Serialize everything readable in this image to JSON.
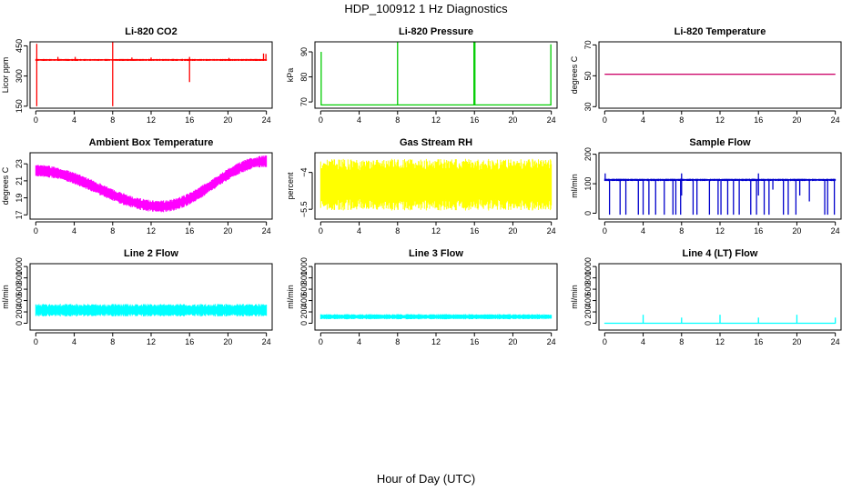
{
  "title": "HDP_100912  1 Hz Diagnostics",
  "xlabel": "Hour of Day (UTC)",
  "chart_data": [
    {
      "type": "line",
      "title": "Li-820 CO2",
      "ylabel": "Licor ppm",
      "color": "#ff0000",
      "x_ticks": [
        0,
        4,
        8,
        12,
        16,
        20,
        24
      ],
      "xlim": [
        -0.6,
        24.6
      ],
      "ylim": [
        140,
        470
      ],
      "y_ticks": [
        150,
        300,
        450
      ],
      "base": {
        "start": 380,
        "end": 380,
        "amp": 5,
        "wave": 0
      },
      "spikes": [
        {
          "x": 0.1,
          "lo": 150,
          "hi": 460
        },
        {
          "x": 2.3,
          "lo": 375,
          "hi": 395
        },
        {
          "x": 4.1,
          "lo": 375,
          "hi": 395
        },
        {
          "x": 8.0,
          "lo": 150,
          "hi": 480
        },
        {
          "x": 10.0,
          "lo": 375,
          "hi": 392
        },
        {
          "x": 12.0,
          "lo": 375,
          "hi": 392
        },
        {
          "x": 16.0,
          "lo": 270,
          "hi": 395
        },
        {
          "x": 20.1,
          "lo": 375,
          "hi": 390
        },
        {
          "x": 23.7,
          "lo": 375,
          "hi": 412
        },
        {
          "x": 23.95,
          "lo": 375,
          "hi": 410
        }
      ]
    },
    {
      "type": "line",
      "title": "Li-820 Pressure",
      "ylabel": "kPa",
      "color": "#00cc00",
      "x_ticks": [
        0,
        4,
        8,
        12,
        16,
        20,
        24
      ],
      "xlim": [
        -0.6,
        24.6
      ],
      "ylim": [
        67.5,
        94
      ],
      "y_ticks": [
        70,
        80,
        90
      ],
      "base": {
        "start": 68.8,
        "end": 68.8,
        "amp": 0.3,
        "wave": 0
      },
      "spikes": [
        {
          "x": 0.05,
          "lo": 68.8,
          "hi": 90
        },
        {
          "x": 8.0,
          "lo": 68.8,
          "hi": 94
        },
        {
          "x": 15.95,
          "lo": 68.8,
          "hi": 94
        },
        {
          "x": 16.05,
          "lo": 68.8,
          "hi": 94
        },
        {
          "x": 23.95,
          "lo": 68.8,
          "hi": 93
        }
      ]
    },
    {
      "type": "line",
      "title": "Li-820 Temperature",
      "ylabel": "degrees C",
      "color": "#cc0066",
      "x_ticks": [
        0,
        4,
        8,
        12,
        16,
        20,
        24
      ],
      "xlim": [
        -0.6,
        24.6
      ],
      "ylim": [
        29,
        72
      ],
      "y_ticks": [
        30,
        50,
        70
      ],
      "base": {
        "start": 51,
        "end": 51,
        "amp": 0.05,
        "wave": 0
      },
      "spikes": []
    },
    {
      "type": "line",
      "title": "Ambient Box Temperature",
      "ylabel": "degrees C",
      "color": "#ff00ff",
      "x_ticks": [
        0,
        4,
        8,
        12,
        16,
        20,
        24
      ],
      "xlim": [
        -0.6,
        24.6
      ],
      "ylim": [
        16.5,
        24.3
      ],
      "y_ticks": [
        17,
        19,
        21,
        23
      ],
      "base": {
        "start": 22.2,
        "end": 23.3,
        "amp": 0.7,
        "wave": 1,
        "min_x": 13,
        "min_y": 18.0
      },
      "spikes": []
    },
    {
      "type": "line",
      "title": "Gas Stream RH",
      "ylabel": "percent",
      "color": "#ffff00",
      "x_ticks": [
        0,
        4,
        8,
        12,
        16,
        20,
        24
      ],
      "xlim": [
        -0.6,
        24.6
      ],
      "ylim": [
        -5.9,
        -3.2
      ],
      "y_ticks": [
        -5.5,
        -4.0
      ],
      "base": {
        "start": -4.5,
        "end": -4.5,
        "amp": 1.05,
        "wave": 0
      },
      "spikes": []
    },
    {
      "type": "line",
      "title": "Sample Flow",
      "ylabel": "ml/min",
      "color": "#0000cc",
      "x_ticks": [
        0,
        4,
        8,
        12,
        16,
        20,
        24
      ],
      "xlim": [
        -0.6,
        24.6
      ],
      "ylim": [
        -20,
        205
      ],
      "y_ticks": [
        0,
        100,
        200
      ],
      "base": {
        "start": 113,
        "end": 113,
        "amp": 4,
        "wave": 0
      },
      "spikes": [
        {
          "x": 0.05,
          "lo": 113,
          "hi": 135
        },
        {
          "x": 0.5,
          "lo": -5,
          "hi": 113
        },
        {
          "x": 1.6,
          "lo": -5,
          "hi": 113
        },
        {
          "x": 2.2,
          "lo": -5,
          "hi": 113
        },
        {
          "x": 3.5,
          "lo": -5,
          "hi": 113
        },
        {
          "x": 4.0,
          "lo": -5,
          "hi": 113
        },
        {
          "x": 4.6,
          "lo": -5,
          "hi": 113
        },
        {
          "x": 5.3,
          "lo": -5,
          "hi": 113
        },
        {
          "x": 6.2,
          "lo": -5,
          "hi": 113
        },
        {
          "x": 7.1,
          "lo": -5,
          "hi": 113
        },
        {
          "x": 7.4,
          "lo": -5,
          "hi": 113
        },
        {
          "x": 7.9,
          "lo": -5,
          "hi": 113
        },
        {
          "x": 8.0,
          "lo": 60,
          "hi": 135
        },
        {
          "x": 9.2,
          "lo": -5,
          "hi": 113
        },
        {
          "x": 9.6,
          "lo": -5,
          "hi": 113
        },
        {
          "x": 10.9,
          "lo": -5,
          "hi": 113
        },
        {
          "x": 11.8,
          "lo": -5,
          "hi": 113
        },
        {
          "x": 12.1,
          "lo": -5,
          "hi": 113
        },
        {
          "x": 12.8,
          "lo": -5,
          "hi": 113
        },
        {
          "x": 13.4,
          "lo": -5,
          "hi": 113
        },
        {
          "x": 14.0,
          "lo": -5,
          "hi": 113
        },
        {
          "x": 15.2,
          "lo": -5,
          "hi": 113
        },
        {
          "x": 15.8,
          "lo": -5,
          "hi": 113
        },
        {
          "x": 16.0,
          "lo": 60,
          "hi": 135
        },
        {
          "x": 16.6,
          "lo": -5,
          "hi": 113
        },
        {
          "x": 17.1,
          "lo": -5,
          "hi": 113
        },
        {
          "x": 17.5,
          "lo": 80,
          "hi": 113
        },
        {
          "x": 18.6,
          "lo": -5,
          "hi": 113
        },
        {
          "x": 19.1,
          "lo": -5,
          "hi": 113
        },
        {
          "x": 19.9,
          "lo": -5,
          "hi": 113
        },
        {
          "x": 20.3,
          "lo": 60,
          "hi": 113
        },
        {
          "x": 21.3,
          "lo": 40,
          "hi": 113
        },
        {
          "x": 22.9,
          "lo": -5,
          "hi": 113
        },
        {
          "x": 23.2,
          "lo": -5,
          "hi": 113
        },
        {
          "x": 23.9,
          "lo": -5,
          "hi": 113
        }
      ]
    },
    {
      "type": "line",
      "title": "Line 2 Flow",
      "ylabel": "ml/min",
      "color": "#00ffff",
      "x_ticks": [
        0,
        4,
        8,
        12,
        16,
        20,
        24
      ],
      "xlim": [
        -0.6,
        24.6
      ],
      "ylim": [
        -120,
        1050
      ],
      "y_ticks": [
        0,
        200,
        400,
        600,
        800,
        1000
      ],
      "base": {
        "start": 230,
        "end": 230,
        "amp": 110,
        "wave": 0
      },
      "spikes": []
    },
    {
      "type": "line",
      "title": "Line 3 Flow",
      "ylabel": "ml/min",
      "color": "#00ffff",
      "x_ticks": [
        0,
        4,
        8,
        12,
        16,
        20,
        24
      ],
      "xlim": [
        -0.6,
        24.6
      ],
      "ylim": [
        -120,
        1050
      ],
      "y_ticks": [
        0,
        200,
        400,
        600,
        800,
        1000
      ],
      "base": {
        "start": 115,
        "end": 115,
        "amp": 45,
        "wave": 0
      },
      "spikes": []
    },
    {
      "type": "line",
      "title": "Line 4 (LT) Flow",
      "ylabel": "ml/min",
      "color": "#00ffff",
      "x_ticks": [
        0,
        4,
        8,
        12,
        16,
        20,
        24
      ],
      "xlim": [
        -0.6,
        24.6
      ],
      "ylim": [
        -120,
        1050
      ],
      "y_ticks": [
        0,
        200,
        400,
        600,
        800,
        1000
      ],
      "base": {
        "start": 0,
        "end": 0,
        "amp": 8,
        "wave": 0
      },
      "spikes": [
        {
          "x": 4.0,
          "lo": 0,
          "hi": 150
        },
        {
          "x": 8.0,
          "lo": 0,
          "hi": 100
        },
        {
          "x": 12.0,
          "lo": 0,
          "hi": 150
        },
        {
          "x": 16.0,
          "lo": 0,
          "hi": 100
        },
        {
          "x": 20.0,
          "lo": 0,
          "hi": 150
        },
        {
          "x": 24.0,
          "lo": 0,
          "hi": 100
        }
      ]
    }
  ]
}
